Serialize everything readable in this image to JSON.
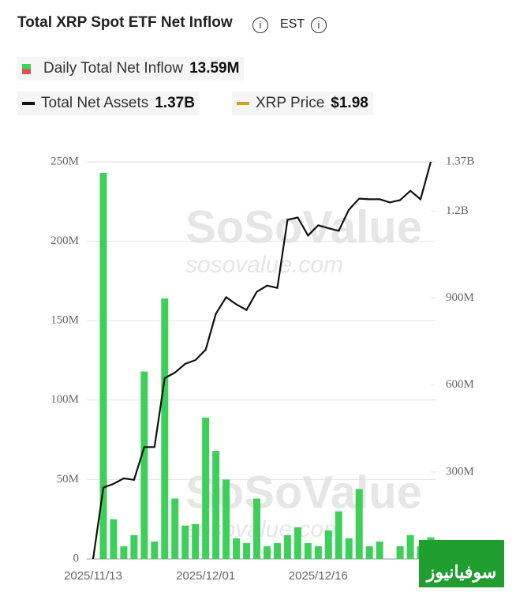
{
  "chart_data": {
    "type": "bar_line",
    "title": "Total XRP Spot ETF Net Inflow",
    "timezone": "EST",
    "categories": [
      "2025/11/13",
      null,
      null,
      null,
      null,
      null,
      null,
      null,
      null,
      null,
      null,
      "2025/12/01",
      null,
      null,
      null,
      null,
      null,
      null,
      null,
      null,
      null,
      null,
      "2025/12/16",
      null,
      null,
      null,
      null,
      null,
      null,
      null,
      null,
      null,
      null,
      null
    ],
    "series": [
      {
        "name": "Daily Total Net Inflow",
        "color": "#3ecf5a",
        "latest": "13.59M",
        "values": [
          0,
          243,
          25,
          8,
          15,
          118,
          11,
          164,
          38,
          21,
          22,
          89,
          68,
          50,
          13,
          10,
          38,
          8,
          10,
          15,
          20,
          10,
          8,
          18,
          30,
          13,
          44,
          8,
          11,
          0,
          8,
          15,
          8,
          13.59
        ]
      },
      {
        "name": "Total Net Assets",
        "color": "#111111",
        "axis": "y2",
        "latest": "1.37B",
        "values": [
          0,
          246,
          259,
          278,
          273,
          386,
          386,
          624,
          643,
          673,
          686,
          722,
          846,
          903,
          878,
          859,
          922,
          943,
          935,
          1170,
          1178,
          1116,
          1151,
          1141,
          1132,
          1205,
          1243,
          1241,
          1241,
          1230,
          1238,
          1270,
          1241,
          1370
        ]
      }
    ],
    "price": {
      "name": "XRP Price",
      "color": "#d4a017",
      "latest": "$1.98"
    },
    "ylim": [
      0,
      250
    ],
    "yticks": [
      0,
      {
        "value": 50,
        "label": "50M"
      },
      {
        "value": 100,
        "label": "100M"
      },
      {
        "value": 150,
        "label": "150M"
      },
      {
        "value": 200,
        "label": "200M"
      },
      {
        "value": 250,
        "label": "250M"
      }
    ],
    "y2lim": [
      0,
      1370
    ],
    "y2ticks": [
      {
        "value": 300,
        "label": "300M"
      },
      {
        "value": 600,
        "label": "600M"
      },
      {
        "value": 900,
        "label": "900M"
      },
      {
        "value": 1200,
        "label": "1.2B"
      },
      {
        "value": 1370,
        "label": "1.37B"
      }
    ],
    "grid": true,
    "watermark": "SoSoValue",
    "watermark_url": "sosovalue.com"
  },
  "badge": "سوفیانیوز"
}
